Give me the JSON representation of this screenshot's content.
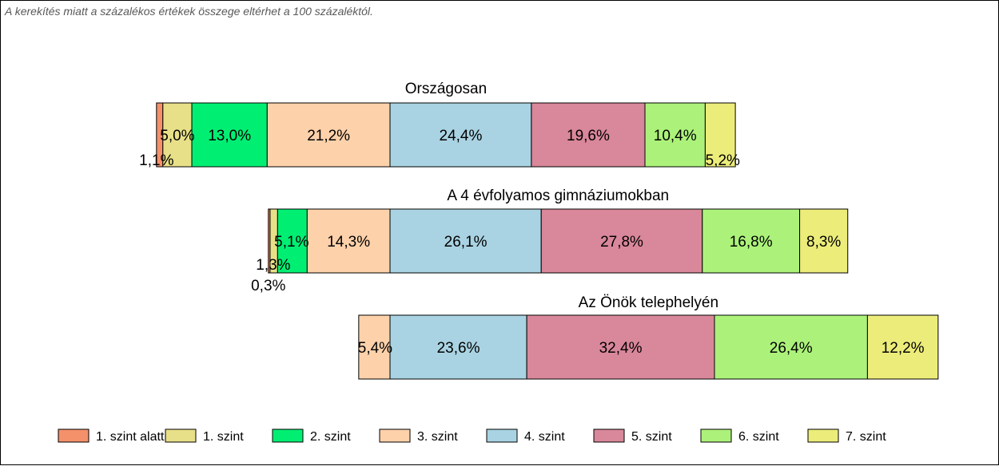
{
  "note": "A kerekítés miatt a  százalékos értékek összege eltérhet a 100 százaléktól.",
  "chart_data": {
    "type": "bar",
    "orientation": "horizontal-stacked-diverging",
    "categories": [
      "Országosan",
      "A 4 évfolyamos gimnáziumokban",
      "Az Önök telephelyén"
    ],
    "series": [
      {
        "name": "1. szint alatti",
        "color": "#f4916b",
        "values": [
          1.1,
          0.3,
          0
        ]
      },
      {
        "name": "1. szint",
        "color": "#e8e088",
        "values": [
          5.0,
          1.3,
          0
        ]
      },
      {
        "name": "2. szint",
        "color": "#00ef73",
        "values": [
          13.0,
          5.1,
          0
        ]
      },
      {
        "name": "3. szint",
        "color": "#fdd1aa",
        "values": [
          21.2,
          14.3,
          5.4
        ]
      },
      {
        "name": "4. szint",
        "color": "#a9d3e2",
        "values": [
          24.4,
          26.1,
          23.6
        ]
      },
      {
        "name": "5. szint",
        "color": "#d9879a",
        "values": [
          19.6,
          27.8,
          32.4
        ]
      },
      {
        "name": "6. szint",
        "color": "#acf27a",
        "values": [
          10.4,
          16.8,
          26.4
        ]
      },
      {
        "name": "7. szint",
        "color": "#ecec7a",
        "values": [
          5.2,
          8.3,
          12.2
        ]
      }
    ],
    "labels": [
      [
        "1,1%",
        "5,0%",
        "13,0%",
        "21,2%",
        "24,4%",
        "19,6%",
        "10,4%",
        "5,2%"
      ],
      [
        "0,3%",
        "1,3%",
        "5,1%",
        "14,3%",
        "26,1%",
        "27,8%",
        "16,8%",
        "8,3%"
      ],
      [
        "",
        "",
        "",
        "5,4%",
        "23,6%",
        "32,4%",
        "26,4%",
        "12,2%"
      ]
    ],
    "legend_position": "bottom",
    "grid": false
  }
}
